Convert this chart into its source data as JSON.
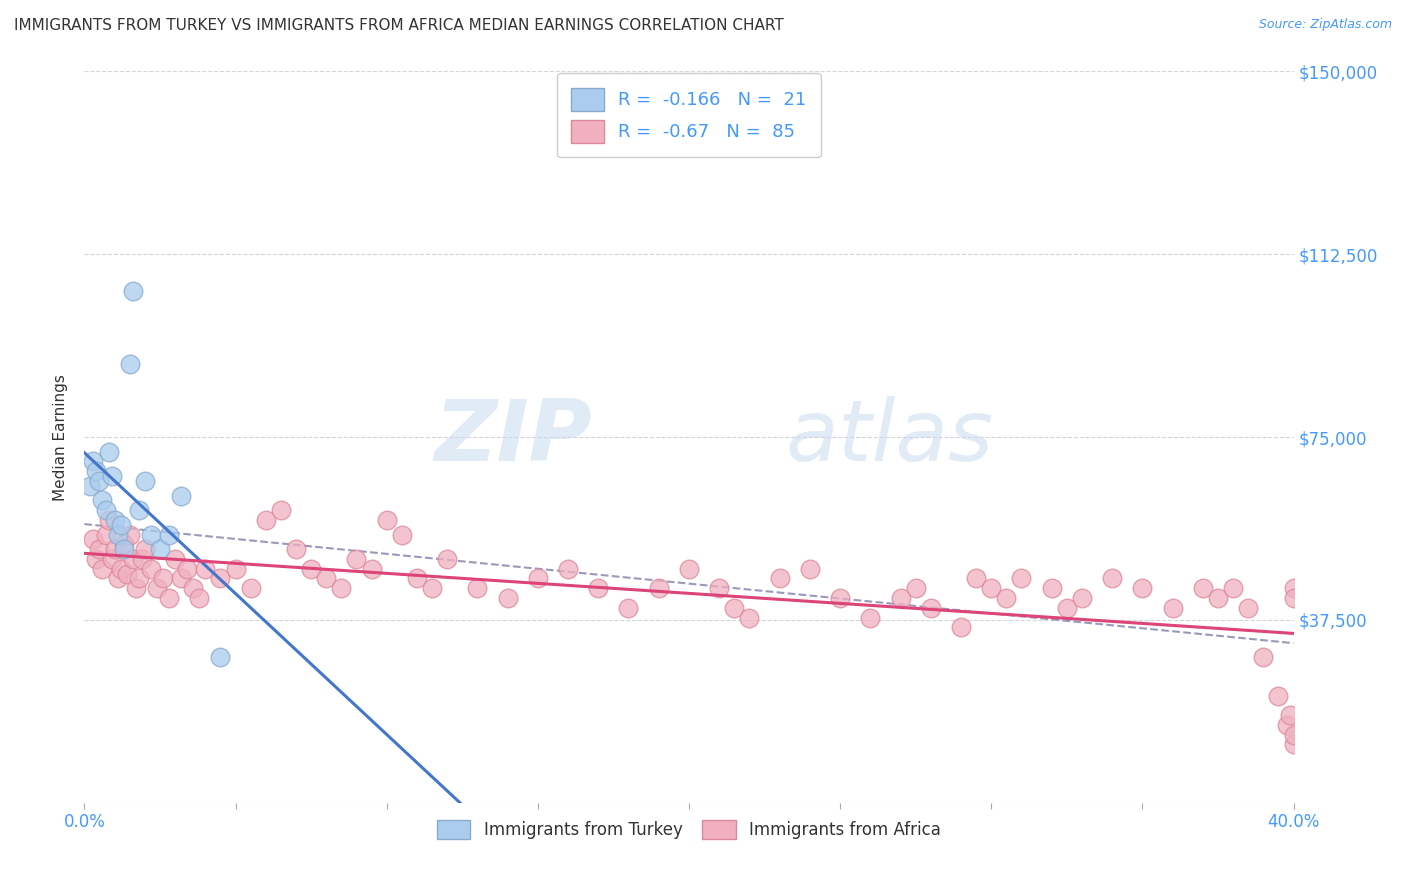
{
  "title": "IMMIGRANTS FROM TURKEY VS IMMIGRANTS FROM AFRICA MEDIAN EARNINGS CORRELATION CHART",
  "source": "Source: ZipAtlas.com",
  "ylabel": "Median Earnings",
  "xmin": 0.0,
  "xmax": 0.4,
  "ymin": 0,
  "ymax": 150000,
  "yticks": [
    0,
    37500,
    75000,
    112500,
    150000
  ],
  "ytick_labels": [
    "",
    "$37,500",
    "$75,000",
    "$112,500",
    "$150,000"
  ],
  "xtick_left_label": "0.0%",
  "xtick_right_label": "40.0%",
  "grid_color": "#d0d0d8",
  "background_color": "#ffffff",
  "turkey_color": "#aaccee",
  "turkey_edge_color": "#88aacc",
  "africa_color": "#f0b0c0",
  "africa_edge_color": "#dd8899",
  "turkey_line_color": "#4477cc",
  "africa_line_color": "#dd4477",
  "dashed_line_color": "#9999bb",
  "turkey_R": -0.166,
  "turkey_N": 21,
  "africa_R": -0.67,
  "africa_N": 85,
  "legend_label_turkey": "Immigrants from Turkey",
  "legend_label_africa": "Immigrants from Africa",
  "watermark_zip": "ZIP",
  "watermark_atlas": "atlas",
  "title_fontsize": 11,
  "source_fontsize": 9,
  "marker_size": 180,
  "turkey_x": [
    0.002,
    0.003,
    0.004,
    0.005,
    0.006,
    0.007,
    0.008,
    0.009,
    0.01,
    0.011,
    0.012,
    0.013,
    0.015,
    0.016,
    0.018,
    0.02,
    0.022,
    0.025,
    0.028,
    0.032,
    0.045
  ],
  "turkey_y": [
    65000,
    70000,
    68000,
    66000,
    62000,
    60000,
    72000,
    67000,
    58000,
    55000,
    57000,
    52000,
    90000,
    105000,
    60000,
    66000,
    55000,
    52000,
    55000,
    63000,
    30000
  ],
  "africa_x": [
    0.003,
    0.004,
    0.005,
    0.006,
    0.007,
    0.008,
    0.009,
    0.01,
    0.011,
    0.012,
    0.013,
    0.014,
    0.015,
    0.016,
    0.017,
    0.018,
    0.019,
    0.02,
    0.022,
    0.024,
    0.026,
    0.028,
    0.03,
    0.032,
    0.034,
    0.036,
    0.038,
    0.04,
    0.045,
    0.05,
    0.055,
    0.06,
    0.065,
    0.07,
    0.075,
    0.08,
    0.085,
    0.09,
    0.095,
    0.1,
    0.105,
    0.11,
    0.115,
    0.12,
    0.13,
    0.14,
    0.15,
    0.16,
    0.17,
    0.18,
    0.19,
    0.2,
    0.21,
    0.215,
    0.22,
    0.23,
    0.24,
    0.25,
    0.26,
    0.27,
    0.275,
    0.28,
    0.29,
    0.295,
    0.3,
    0.305,
    0.31,
    0.32,
    0.325,
    0.33,
    0.34,
    0.35,
    0.36,
    0.37,
    0.375,
    0.38,
    0.385,
    0.39,
    0.395,
    0.398,
    0.399,
    0.4,
    0.4,
    0.4,
    0.4
  ],
  "africa_y": [
    54000,
    50000,
    52000,
    48000,
    55000,
    58000,
    50000,
    52000,
    46000,
    48000,
    53000,
    47000,
    55000,
    50000,
    44000,
    46000,
    50000,
    52000,
    48000,
    44000,
    46000,
    42000,
    50000,
    46000,
    48000,
    44000,
    42000,
    48000,
    46000,
    48000,
    44000,
    58000,
    60000,
    52000,
    48000,
    46000,
    44000,
    50000,
    48000,
    58000,
    55000,
    46000,
    44000,
    50000,
    44000,
    42000,
    46000,
    48000,
    44000,
    40000,
    44000,
    48000,
    44000,
    40000,
    38000,
    46000,
    48000,
    42000,
    38000,
    42000,
    44000,
    40000,
    36000,
    46000,
    44000,
    42000,
    46000,
    44000,
    40000,
    42000,
    46000,
    44000,
    40000,
    44000,
    42000,
    44000,
    40000,
    30000,
    22000,
    16000,
    18000,
    12000,
    14000,
    44000,
    42000
  ]
}
